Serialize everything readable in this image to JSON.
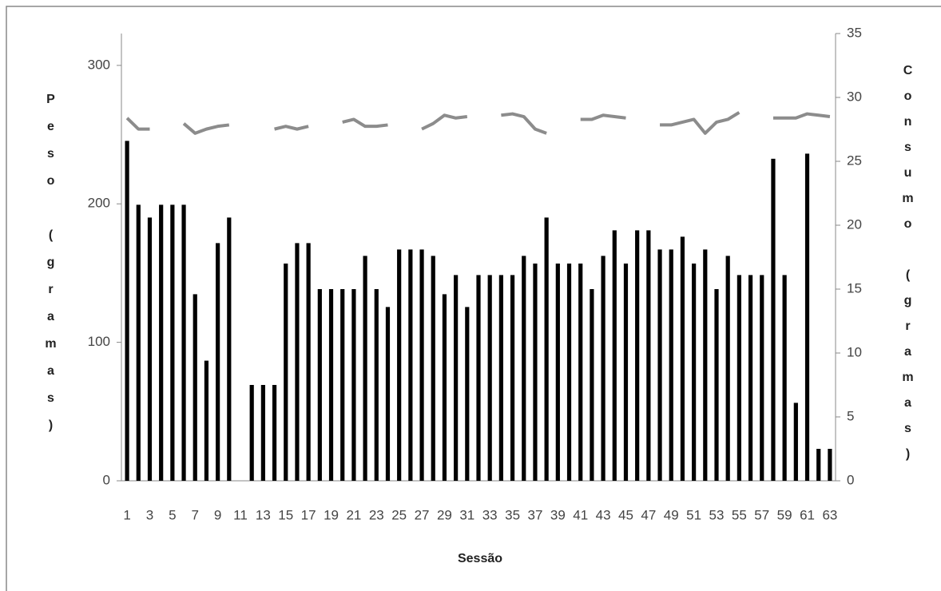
{
  "chart_data": {
    "type": "bar",
    "x_label": "Sessão",
    "y_label": "Peso (gramas)",
    "y2_label": "Consumo (gramas)",
    "categories": [
      "1",
      null,
      "3",
      null,
      "5",
      null,
      "7",
      null,
      "9",
      null,
      "11",
      null,
      "13",
      null,
      "15",
      null,
      "17",
      null,
      "19",
      null,
      "21",
      null,
      "23",
      null,
      "25",
      null,
      "27",
      null,
      "29",
      null,
      "31",
      null,
      "33",
      null,
      "35",
      null,
      "37",
      null,
      "39",
      null,
      "41",
      null,
      "43",
      null,
      "45",
      null,
      "47",
      null,
      "49",
      null,
      "51",
      null,
      "53",
      null,
      "55",
      null,
      "57",
      null,
      "59",
      null,
      "61",
      null,
      "63"
    ],
    "series": [
      {
        "type": "bar",
        "axis": "y2",
        "color": "#000000",
        "values": [
          26.6,
          21.6,
          20.6,
          21.6,
          21.6,
          21.6,
          14.6,
          9.4,
          18.6,
          20.6,
          null,
          7.5,
          7.5,
          7.5,
          17,
          18.6,
          18.6,
          15,
          15,
          15,
          15,
          17.6,
          15,
          13.6,
          18.1,
          18.1,
          18.1,
          17.6,
          14.6,
          16.1,
          13.6,
          16.1,
          16.1,
          16.1,
          16.1,
          17.6,
          17,
          20.6,
          17,
          17,
          17,
          15,
          17.6,
          19.6,
          17,
          19.6,
          19.6,
          18.1,
          18.1,
          19.1,
          17,
          18.1,
          15,
          17.6,
          16.1,
          16.1,
          16.1,
          25.2,
          16.1,
          6.1,
          25.6,
          2.5,
          2.5
        ]
      },
      {
        "type": "line",
        "axis": "y",
        "color": "#8c8c8c",
        "values": [
          262,
          254,
          254,
          null,
          null,
          258,
          251,
          254,
          256,
          257,
          null,
          null,
          null,
          254,
          256,
          254,
          256,
          null,
          null,
          259,
          261,
          256,
          256,
          257,
          null,
          null,
          254,
          258,
          264,
          262,
          263,
          null,
          null,
          264,
          265,
          263,
          254,
          251,
          null,
          null,
          261,
          261,
          264,
          263,
          262,
          null,
          null,
          257,
          257,
          259,
          261,
          251,
          259,
          261,
          266,
          null,
          null,
          262,
          262,
          262,
          265,
          264,
          263
        ]
      }
    ],
    "ylim": [
      0,
      323
    ],
    "yticks": [
      0,
      100,
      200,
      300
    ],
    "y2lim": [
      0,
      35
    ],
    "y2ticks": [
      0,
      5,
      10,
      15,
      20,
      25,
      30,
      35
    ]
  }
}
